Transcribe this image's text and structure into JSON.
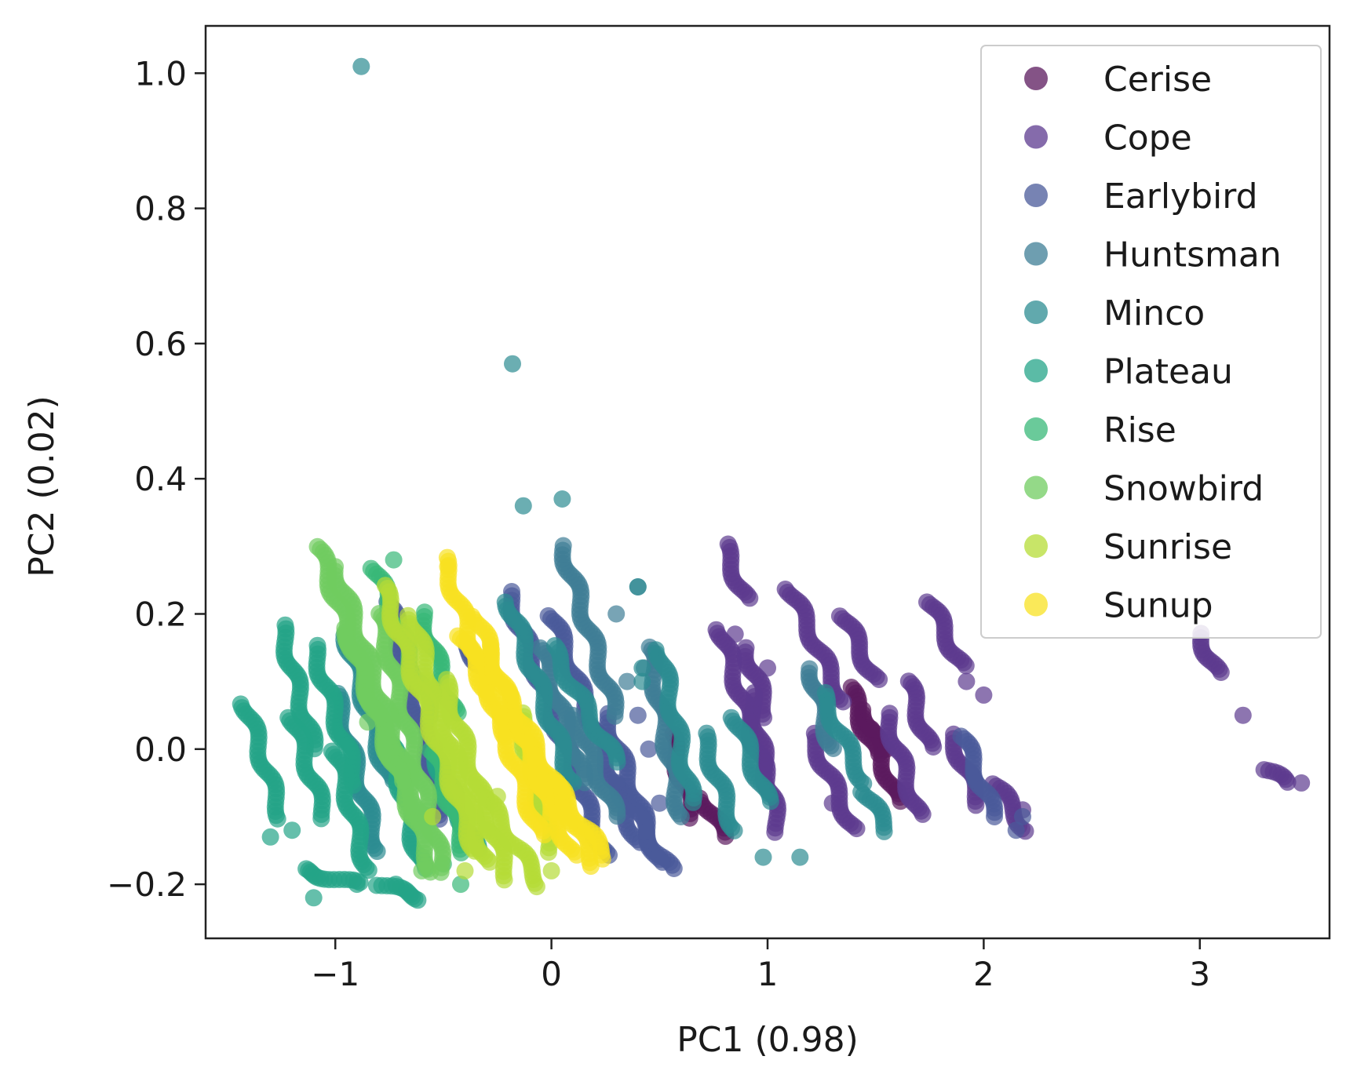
{
  "chart_data": {
    "type": "scatter",
    "title": "",
    "xlabel": "PC1 (0.98)",
    "ylabel": "PC2 (0.02)",
    "xlim": [
      -1.6,
      3.6
    ],
    "ylim": [
      -0.28,
      1.07
    ],
    "xticks": [
      -1,
      0,
      1,
      2,
      3
    ],
    "yticks": [
      -0.2,
      0.0,
      0.2,
      0.4,
      0.6,
      0.8,
      1.0
    ],
    "xtick_labels": [
      "−1",
      "0",
      "1",
      "2",
      "3"
    ],
    "ytick_labels": [
      "−0.2",
      "0.0",
      "0.2",
      "0.4",
      "0.6",
      "0.8",
      "1.0"
    ],
    "grid": false,
    "legend_position": "top-right",
    "series": [
      {
        "name": "Cerise",
        "color": "#5b1a5e",
        "segments": [
          [
            1.38,
            0.09,
            1.5,
            -0.01
          ],
          [
            1.45,
            0.06,
            1.6,
            -0.08
          ],
          [
            0.55,
            0.02,
            0.65,
            -0.1
          ],
          [
            0.7,
            -0.07,
            0.8,
            -0.13
          ]
        ],
        "points": [
          [
            1.48,
            0.03
          ],
          [
            1.55,
            0.0
          ],
          [
            1.6,
            -0.06
          ]
        ]
      },
      {
        "name": "Cope",
        "color": "#5c3a8f",
        "segments": [
          [
            0.8,
            0.3,
            0.9,
            0.22
          ],
          [
            0.78,
            0.18,
            1.0,
            -0.05
          ],
          [
            0.92,
            0.08,
            1.05,
            -0.12
          ],
          [
            1.1,
            0.24,
            1.35,
            0.07
          ],
          [
            1.2,
            0.02,
            1.4,
            -0.12
          ],
          [
            1.35,
            0.2,
            1.5,
            0.1
          ],
          [
            1.55,
            0.05,
            1.7,
            -0.1
          ],
          [
            1.75,
            0.22,
            1.9,
            0.12
          ],
          [
            1.85,
            0.02,
            1.98,
            -0.08
          ],
          [
            2.05,
            -0.05,
            2.2,
            -0.12
          ],
          [
            3.0,
            0.17,
            3.08,
            0.11
          ],
          [
            3.3,
            -0.03,
            3.4,
            -0.05
          ],
          [
            0.9,
            0.15,
            1.0,
            0.05
          ],
          [
            1.65,
            0.1,
            1.75,
            0.0
          ]
        ],
        "points": [
          [
            3.2,
            0.05
          ],
          [
            3.47,
            -0.05
          ],
          [
            2.18,
            -0.09
          ],
          [
            1.92,
            0.1
          ],
          [
            0.85,
            0.17
          ],
          [
            1.0,
            0.12
          ],
          [
            2.0,
            0.08
          ],
          [
            1.3,
            -0.08
          ]
        ]
      },
      {
        "name": "Earlybird",
        "color": "#4a5a9a",
        "segments": [
          [
            -0.2,
            0.23,
            0.25,
            -0.16
          ],
          [
            0.0,
            0.2,
            0.4,
            -0.14
          ],
          [
            0.25,
            0.05,
            0.5,
            -0.17
          ],
          [
            -0.75,
            0.22,
            -0.5,
            -0.1
          ],
          [
            -0.4,
            0.15,
            -0.3,
            0.12
          ],
          [
            1.9,
            0.02,
            2.05,
            -0.1
          ],
          [
            0.3,
            -0.05,
            0.55,
            -0.18
          ]
        ],
        "points": [
          [
            2.15,
            -0.12
          ],
          [
            2.18,
            -0.1
          ],
          [
            0.5,
            -0.08
          ],
          [
            0.45,
            0.0
          ],
          [
            0.4,
            0.05
          ]
        ]
      },
      {
        "name": "Huntsman",
        "color": "#3e7d96",
        "segments": [
          [
            0.05,
            0.3,
            0.3,
            0.05
          ],
          [
            -0.05,
            0.15,
            0.15,
            -0.05
          ],
          [
            0.1,
            0.05,
            0.3,
            -0.1
          ],
          [
            0.45,
            0.15,
            0.6,
            -0.1
          ],
          [
            1.2,
            0.12,
            1.3,
            0.0
          ]
        ],
        "points": [
          [
            0.4,
            0.24
          ],
          [
            0.43,
            0.12
          ],
          [
            0.35,
            0.1
          ],
          [
            0.3,
            0.2
          ]
        ]
      },
      {
        "name": "Minco",
        "color": "#2c8c92",
        "segments": [
          [
            -0.95,
            0.17,
            -0.75,
            -0.05
          ],
          [
            -1.0,
            0.08,
            -0.8,
            -0.15
          ],
          [
            -0.2,
            0.22,
            0.1,
            -0.05
          ],
          [
            0.0,
            0.15,
            0.3,
            -0.02
          ],
          [
            0.5,
            0.15,
            0.65,
            -0.08
          ],
          [
            0.7,
            0.02,
            0.85,
            -0.12
          ],
          [
            0.85,
            0.05,
            1.0,
            -0.08
          ],
          [
            1.25,
            0.08,
            1.45,
            -0.05
          ],
          [
            1.45,
            -0.06,
            1.55,
            -0.12
          ]
        ],
        "points": [
          [
            -0.88,
            1.01
          ],
          [
            -0.18,
            0.57
          ],
          [
            -0.13,
            0.36
          ],
          [
            0.05,
            0.37
          ],
          [
            0.4,
            0.24
          ],
          [
            0.42,
            0.12
          ],
          [
            0.42,
            0.1
          ],
          [
            0.98,
            -0.16
          ],
          [
            1.15,
            -0.16
          ]
        ]
      },
      {
        "name": "Plateau",
        "color": "#24a488",
        "segments": [
          [
            -1.42,
            0.07,
            -1.25,
            -0.1
          ],
          [
            -1.25,
            0.18,
            -1.1,
            0.0
          ],
          [
            -1.2,
            0.05,
            -1.05,
            -0.1
          ],
          [
            -1.1,
            0.15,
            -0.9,
            -0.05
          ],
          [
            -1.0,
            0.0,
            -0.85,
            -0.18
          ],
          [
            -1.15,
            -0.18,
            -0.9,
            -0.2
          ],
          [
            -0.75,
            0.02,
            -0.6,
            -0.18
          ],
          [
            -0.55,
            0.0,
            -0.35,
            -0.15
          ],
          [
            -0.8,
            -0.2,
            -0.6,
            -0.22
          ]
        ],
        "points": [
          [
            -1.3,
            -0.13
          ],
          [
            -1.1,
            -0.22
          ],
          [
            -0.9,
            -0.2
          ],
          [
            -1.2,
            -0.12
          ],
          [
            -0.72,
            -0.2
          ],
          [
            -0.6,
            -0.16
          ]
        ]
      },
      {
        "name": "Rise",
        "color": "#38b878",
        "segments": [
          [
            -0.82,
            0.27,
            -0.55,
            0.05
          ],
          [
            -0.6,
            0.2,
            -0.45,
            0.05
          ],
          [
            -0.55,
            0.0,
            -0.4,
            -0.15
          ]
        ],
        "points": [
          [
            -0.73,
            0.28
          ],
          [
            -0.5,
            -0.17
          ],
          [
            -0.42,
            -0.2
          ]
        ]
      },
      {
        "name": "Snowbird",
        "color": "#70cc60",
        "segments": [
          [
            -1.08,
            0.3,
            -0.55,
            -0.18
          ],
          [
            -1.0,
            0.27,
            -0.6,
            -0.1
          ],
          [
            -0.8,
            0.2,
            -0.5,
            -0.18
          ],
          [
            -0.95,
            0.18,
            -0.7,
            -0.05
          ]
        ],
        "points": [
          [
            -0.85,
            0.04
          ],
          [
            -0.6,
            -0.18
          ]
        ]
      },
      {
        "name": "Sunrise",
        "color": "#b5dc36",
        "segments": [
          [
            -0.78,
            0.24,
            -0.35,
            -0.15
          ],
          [
            -0.65,
            0.2,
            -0.3,
            -0.17
          ],
          [
            -0.5,
            0.1,
            -0.2,
            -0.19
          ],
          [
            -0.35,
            -0.05,
            -0.05,
            -0.2
          ],
          [
            -0.15,
            0.05,
            0.0,
            -0.15
          ]
        ],
        "points": [
          [
            -0.55,
            -0.1
          ],
          [
            -0.3,
            -0.12
          ],
          [
            -0.25,
            -0.07
          ],
          [
            0.0,
            -0.18
          ],
          [
            -0.4,
            -0.18
          ]
        ]
      },
      {
        "name": "Sunup",
        "color": "#f8e121",
        "segments": [
          [
            -0.5,
            0.28,
            -0.05,
            -0.13
          ],
          [
            -0.35,
            0.2,
            0.0,
            -0.1
          ],
          [
            -0.3,
            0.15,
            0.1,
            -0.16
          ],
          [
            -0.15,
            0.05,
            0.2,
            -0.17
          ],
          [
            -0.1,
            0.0,
            0.25,
            -0.16
          ],
          [
            -0.42,
            0.17,
            -0.2,
            0.02
          ]
        ],
        "points": [
          [
            -0.48,
            0.27
          ]
        ]
      }
    ]
  }
}
